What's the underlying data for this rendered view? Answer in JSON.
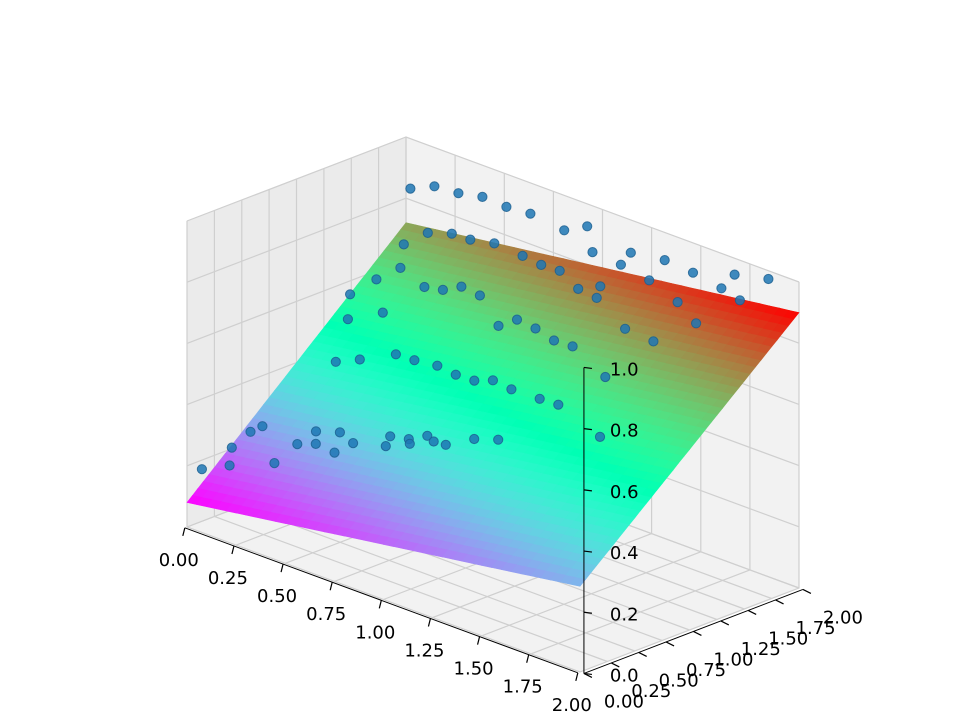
{
  "chart_data": {
    "type": "scatter",
    "variant": "3d-scatter-with-fitted-plane",
    "title": "",
    "xlabel": "",
    "ylabel": "",
    "zlabel": "",
    "xlim": [
      0.0,
      2.0
    ],
    "ylim": [
      0.0,
      2.0
    ],
    "zlim": [
      0.0,
      1.0
    ],
    "xticks": [
      "0.00",
      "0.25",
      "0.50",
      "0.75",
      "1.00",
      "1.25",
      "1.50",
      "1.75",
      "2.00"
    ],
    "yticks": [
      "0.00",
      "0.25",
      "0.50",
      "0.75",
      "1.00",
      "1.25",
      "1.50",
      "1.75",
      "2.00"
    ],
    "zticks": [
      "0.0",
      "0.2",
      "0.4",
      "0.6",
      "0.8",
      "1.0"
    ],
    "grid": true,
    "surface": {
      "type": "plane",
      "colormap": "rainbow",
      "corners": {
        "x0y0": 0.08,
        "x2y0": 0.28,
        "x0y2": 0.72,
        "x2y2": 0.9
      }
    },
    "scatter_color": "#1f77b4",
    "points": [
      [
        0.02,
        0.1,
        0.18
      ],
      [
        0.15,
        0.12,
        0.22
      ],
      [
        0.2,
        0.05,
        0.3
      ],
      [
        0.3,
        0.15,
        0.38
      ],
      [
        0.05,
        0.3,
        0.18
      ],
      [
        0.1,
        0.4,
        0.28
      ],
      [
        0.25,
        0.35,
        0.22
      ],
      [
        0.45,
        0.2,
        0.35
      ],
      [
        0.6,
        0.1,
        0.4
      ],
      [
        0.75,
        0.05,
        0.48
      ],
      [
        0.1,
        0.6,
        0.2
      ],
      [
        0.2,
        0.75,
        0.28
      ],
      [
        0.35,
        0.55,
        0.32
      ],
      [
        0.5,
        0.45,
        0.3
      ],
      [
        0.65,
        0.35,
        0.38
      ],
      [
        0.9,
        0.2,
        0.45
      ],
      [
        1.05,
        0.15,
        0.5
      ],
      [
        1.2,
        0.1,
        0.55
      ],
      [
        0.4,
        0.85,
        0.25
      ],
      [
        0.55,
        0.7,
        0.35
      ],
      [
        0.7,
        0.6,
        0.38
      ],
      [
        0.85,
        0.5,
        0.42
      ],
      [
        1.0,
        0.4,
        0.48
      ],
      [
        1.15,
        0.3,
        0.5
      ],
      [
        1.35,
        0.2,
        0.58
      ],
      [
        1.5,
        0.15,
        0.62
      ],
      [
        0.2,
        1.0,
        0.45
      ],
      [
        0.35,
        0.95,
        0.5
      ],
      [
        0.15,
        1.2,
        0.55
      ],
      [
        0.3,
        1.25,
        0.6
      ],
      [
        0.45,
        1.1,
        0.52
      ],
      [
        0.6,
        1.0,
        0.55
      ],
      [
        0.8,
        0.85,
        0.6
      ],
      [
        0.95,
        0.75,
        0.62
      ],
      [
        1.1,
        0.65,
        0.65
      ],
      [
        1.25,
        0.55,
        0.7
      ],
      [
        1.4,
        0.45,
        0.72
      ],
      [
        1.6,
        0.35,
        0.75
      ],
      [
        1.75,
        0.25,
        0.78
      ],
      [
        0.05,
        1.4,
        0.58
      ],
      [
        0.1,
        1.55,
        0.62
      ],
      [
        0.25,
        1.5,
        0.7
      ],
      [
        0.4,
        1.45,
        0.68
      ],
      [
        0.55,
        1.35,
        0.72
      ],
      [
        0.7,
        1.25,
        0.78
      ],
      [
        0.85,
        1.15,
        0.8
      ],
      [
        1.0,
        1.05,
        0.75
      ],
      [
        1.15,
        0.95,
        0.82
      ],
      [
        1.3,
        0.85,
        0.84
      ],
      [
        1.45,
        0.75,
        0.85
      ],
      [
        1.6,
        0.65,
        0.88
      ],
      [
        1.85,
        0.5,
        0.86
      ],
      [
        0.1,
        1.8,
        0.7
      ],
      [
        0.25,
        1.75,
        0.78
      ],
      [
        0.4,
        1.7,
        0.82
      ],
      [
        0.55,
        1.6,
        0.85
      ],
      [
        0.7,
        1.55,
        0.88
      ],
      [
        0.9,
        1.45,
        0.9
      ],
      [
        1.05,
        1.35,
        0.92
      ],
      [
        1.2,
        1.25,
        0.95
      ],
      [
        1.35,
        1.15,
        0.94
      ],
      [
        1.5,
        1.05,
        0.96
      ],
      [
        1.7,
        0.95,
        0.92
      ],
      [
        1.9,
        0.85,
        0.94
      ],
      [
        0.05,
        1.95,
        0.85
      ],
      [
        0.2,
        1.9,
        0.9
      ],
      [
        0.35,
        1.85,
        0.92
      ],
      [
        0.5,
        1.8,
        0.95
      ],
      [
        0.65,
        1.75,
        0.96
      ],
      [
        0.8,
        1.7,
        0.98
      ],
      [
        1.0,
        1.65,
        0.98
      ],
      [
        1.2,
        1.55,
        0.97
      ],
      [
        1.4,
        1.45,
        0.99
      ],
      [
        1.6,
        1.35,
        1.0
      ],
      [
        1.8,
        1.25,
        0.99
      ],
      [
        1.95,
        1.15,
        0.97
      ],
      [
        1.2,
        1.9,
        0.92
      ],
      [
        1.4,
        1.85,
        0.95
      ],
      [
        1.6,
        1.75,
        0.97
      ],
      [
        1.8,
        1.65,
        0.98
      ],
      [
        1.95,
        1.55,
        0.99
      ],
      [
        1.7,
        1.95,
        0.96
      ],
      [
        1.9,
        1.9,
        1.0
      ],
      [
        0.95,
        1.95,
        0.94
      ],
      [
        1.1,
        1.8,
        0.8
      ],
      [
        0.6,
        1.95,
        0.75
      ],
      [
        1.5,
        1.6,
        0.65
      ],
      [
        1.75,
        1.5,
        0.7
      ],
      [
        1.3,
        1.7,
        0.6
      ],
      [
        1.6,
        0.9,
        0.55
      ]
    ]
  }
}
